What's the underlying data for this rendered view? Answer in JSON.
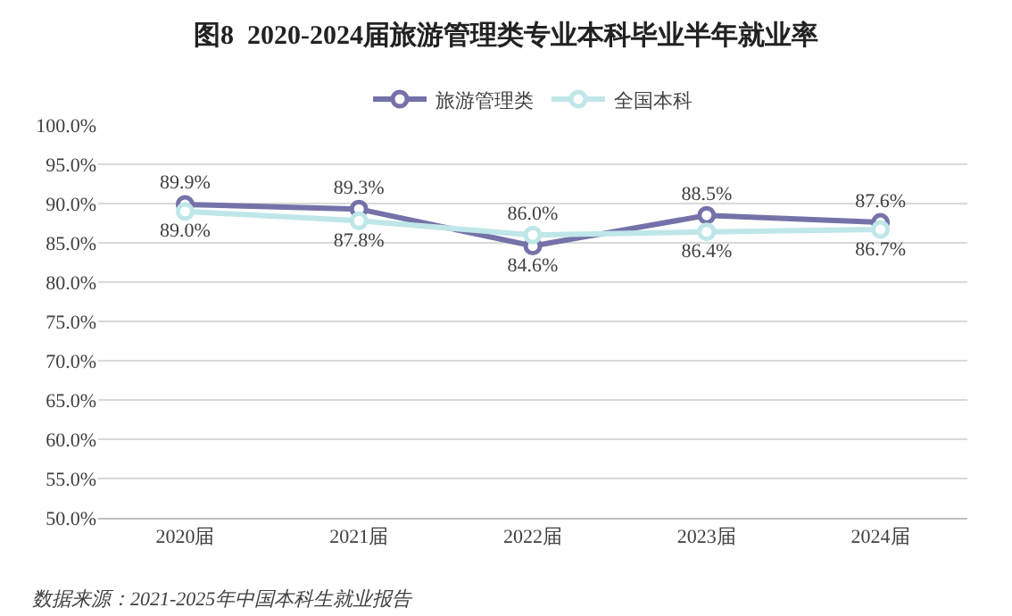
{
  "chart_data": {
    "type": "line",
    "title": "图8  2020-2024届旅游管理类专业本科毕业半年就业率",
    "categories": [
      "2020届",
      "2021届",
      "2022届",
      "2023届",
      "2024届"
    ],
    "series": [
      {
        "name": "旅游管理类",
        "color": "#7472a8",
        "values": [
          89.9,
          89.3,
          84.6,
          88.5,
          87.6
        ],
        "value_labels": [
          "89.9%",
          "89.3%",
          "84.6%",
          "88.5%",
          "87.6%"
        ]
      },
      {
        "name": "全国本科",
        "color": "#bfe6e8",
        "values": [
          89.0,
          87.8,
          86.0,
          86.4,
          86.7
        ],
        "value_labels": [
          "89.0%",
          "87.8%",
          "86.0%",
          "86.4%",
          "86.7%"
        ]
      }
    ],
    "ylim": [
      50,
      100
    ],
    "yticks": [
      {
        "value": 50,
        "label": "50.0%"
      },
      {
        "value": 55,
        "label": "55.0%"
      },
      {
        "value": 60,
        "label": "60.0%"
      },
      {
        "value": 65,
        "label": "65.0%"
      },
      {
        "value": 70,
        "label": "70.0%"
      },
      {
        "value": 75,
        "label": "75.0%"
      },
      {
        "value": 80,
        "label": "80.0%"
      },
      {
        "value": 85,
        "label": "85.0%"
      },
      {
        "value": 90,
        "label": "90.0%"
      },
      {
        "value": 95,
        "label": "95.0%"
      },
      {
        "value": 100,
        "label": "100.0%"
      }
    ],
    "grid": "y",
    "legend": "top",
    "marker": "circle",
    "line_style": "solid",
    "annotations": [
      "数据来源：2021-2025年中国本科生就业报告"
    ]
  }
}
